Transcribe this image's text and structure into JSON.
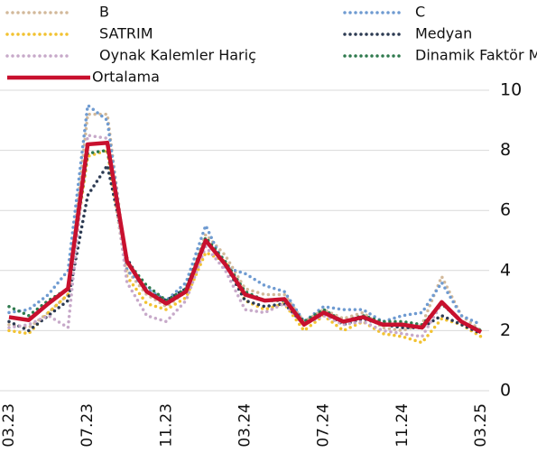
{
  "chart_data": {
    "type": "line",
    "categories": [
      "03.23",
      null,
      null,
      null,
      "07.23",
      null,
      null,
      null,
      "11.23",
      null,
      null,
      null,
      "03.24",
      null,
      null,
      null,
      "07.24",
      null,
      null,
      null,
      "11.24",
      null,
      null,
      null,
      "03.25"
    ],
    "series": [
      {
        "name": "B",
        "color": "#d2b99a",
        "style": "dotted",
        "values": [
          2.2,
          2.1,
          2.6,
          3.2,
          9.2,
          9.2,
          4.0,
          3.2,
          2.8,
          3.3,
          5.2,
          4.5,
          3.4,
          3.2,
          3.2,
          2.3,
          2.7,
          2.4,
          2.6,
          2.1,
          2.0,
          2.2,
          3.8,
          2.5,
          2.0
        ]
      },
      {
        "name": "C",
        "color": "#6f9bd1",
        "style": "dotted",
        "values": [
          2.6,
          2.7,
          3.2,
          4.0,
          9.5,
          9.0,
          4.0,
          3.4,
          3.0,
          3.6,
          5.5,
          4.1,
          3.9,
          3.5,
          3.3,
          2.3,
          2.8,
          2.7,
          2.7,
          2.3,
          2.5,
          2.6,
          3.6,
          2.5,
          2.2
        ]
      },
      {
        "name": "SATRIM",
        "color": "#f2c230",
        "style": "dotted",
        "values": [
          2.0,
          1.9,
          2.6,
          3.2,
          7.8,
          8.0,
          3.8,
          2.9,
          2.7,
          3.1,
          4.6,
          4.3,
          3.0,
          2.7,
          2.9,
          2.0,
          2.5,
          2.0,
          2.3,
          1.9,
          1.8,
          1.6,
          2.4,
          2.2,
          1.8
        ]
      },
      {
        "name": "Medyan",
        "color": "#2c3a52",
        "style": "dotted",
        "values": [
          2.3,
          2.0,
          2.5,
          3.0,
          6.5,
          7.5,
          4.4,
          3.3,
          3.0,
          3.4,
          5.0,
          4.2,
          3.0,
          2.8,
          2.9,
          2.2,
          2.6,
          2.2,
          2.4,
          2.2,
          2.1,
          2.1,
          2.5,
          2.2,
          1.9
        ]
      },
      {
        "name": "Oynak Kalemler Hariç",
        "color": "#c7a9c9",
        "style": "dotted",
        "values": [
          2.1,
          2.2,
          2.5,
          2.1,
          8.5,
          8.4,
          3.6,
          2.5,
          2.3,
          3.0,
          4.8,
          4.0,
          2.7,
          2.6,
          2.9,
          2.2,
          2.5,
          2.2,
          2.3,
          2.0,
          1.9,
          1.8,
          2.9,
          2.3,
          2.0
        ]
      },
      {
        "name": "Dinamik Faktör Modeli",
        "color": "#2f7a4e",
        "style": "dotted",
        "values": [
          2.8,
          2.5,
          3.0,
          3.4,
          7.9,
          8.0,
          4.3,
          3.5,
          3.0,
          3.4,
          5.1,
          4.3,
          3.3,
          3.0,
          3.0,
          2.3,
          2.7,
          2.3,
          2.5,
          2.3,
          2.3,
          2.2,
          2.9,
          2.3,
          2.0
        ]
      },
      {
        "name": "Ortalama",
        "color": "#c8102e",
        "style": "solid",
        "values": [
          2.45,
          2.35,
          2.9,
          3.4,
          8.2,
          8.25,
          4.3,
          3.3,
          2.9,
          3.3,
          5.0,
          4.2,
          3.2,
          3.0,
          3.05,
          2.2,
          2.6,
          2.3,
          2.45,
          2.2,
          2.2,
          2.1,
          2.95,
          2.3,
          1.95
        ]
      }
    ],
    "ylim": [
      0,
      10
    ],
    "yticks": [
      0,
      2,
      4,
      6,
      8,
      10
    ],
    "grid": true,
    "y_axis_side": "right",
    "legend": "top"
  }
}
